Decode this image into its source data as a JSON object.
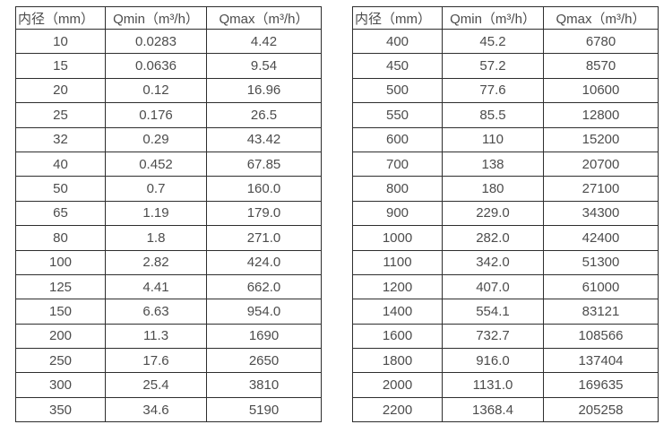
{
  "page": {
    "background": "#ffffff",
    "border_color": "#2e2e2e",
    "text_color": "#4c4c4c"
  },
  "tables": [
    {
      "name": "flow-rate-table-small-diameters",
      "headers": [
        "内径（mm）",
        "Qmin（m³/h）",
        "Qmax（m³/h）"
      ],
      "rows": [
        [
          "10",
          "0.0283",
          "4.42"
        ],
        [
          "15",
          "0.0636",
          "9.54"
        ],
        [
          "20",
          "0.12",
          "16.96"
        ],
        [
          "25",
          "0.176",
          "26.5"
        ],
        [
          "32",
          "0.29",
          "43.42"
        ],
        [
          "40",
          "0.452",
          "67.85"
        ],
        [
          "50",
          "0.7",
          "160.0"
        ],
        [
          "65",
          "1.19",
          "179.0"
        ],
        [
          "80",
          "1.8",
          "271.0"
        ],
        [
          "100",
          "2.82",
          "424.0"
        ],
        [
          "125",
          "4.41",
          "662.0"
        ],
        [
          "150",
          "6.63",
          "954.0"
        ],
        [
          "200",
          "11.3",
          "1690"
        ],
        [
          "250",
          "17.6",
          "2650"
        ],
        [
          "300",
          "25.4",
          "3810"
        ],
        [
          "350",
          "34.6",
          "5190"
        ]
      ]
    },
    {
      "name": "flow-rate-table-large-diameters",
      "headers": [
        "内径（mm）",
        "Qmin（m³/h）",
        "Qmax（m³/h）"
      ],
      "rows": [
        [
          "400",
          "45.2",
          "6780"
        ],
        [
          "450",
          "57.2",
          "8570"
        ],
        [
          "500",
          "77.6",
          "10600"
        ],
        [
          "550",
          "85.5",
          "12800"
        ],
        [
          "600",
          "110",
          "15200"
        ],
        [
          "700",
          "138",
          "20700"
        ],
        [
          "800",
          "180",
          "27100"
        ],
        [
          "900",
          "229.0",
          "34300"
        ],
        [
          "1000",
          "282.0",
          "42400"
        ],
        [
          "1100",
          "342.0",
          "51300"
        ],
        [
          "1200",
          "407.0",
          "61000"
        ],
        [
          "1400",
          "554.1",
          "83121"
        ],
        [
          "1600",
          "732.7",
          "108566"
        ],
        [
          "1800",
          "916.0",
          "137404"
        ],
        [
          "2000",
          "1131.0",
          "169635"
        ],
        [
          "2200",
          "1368.4",
          "205258"
        ]
      ]
    }
  ]
}
